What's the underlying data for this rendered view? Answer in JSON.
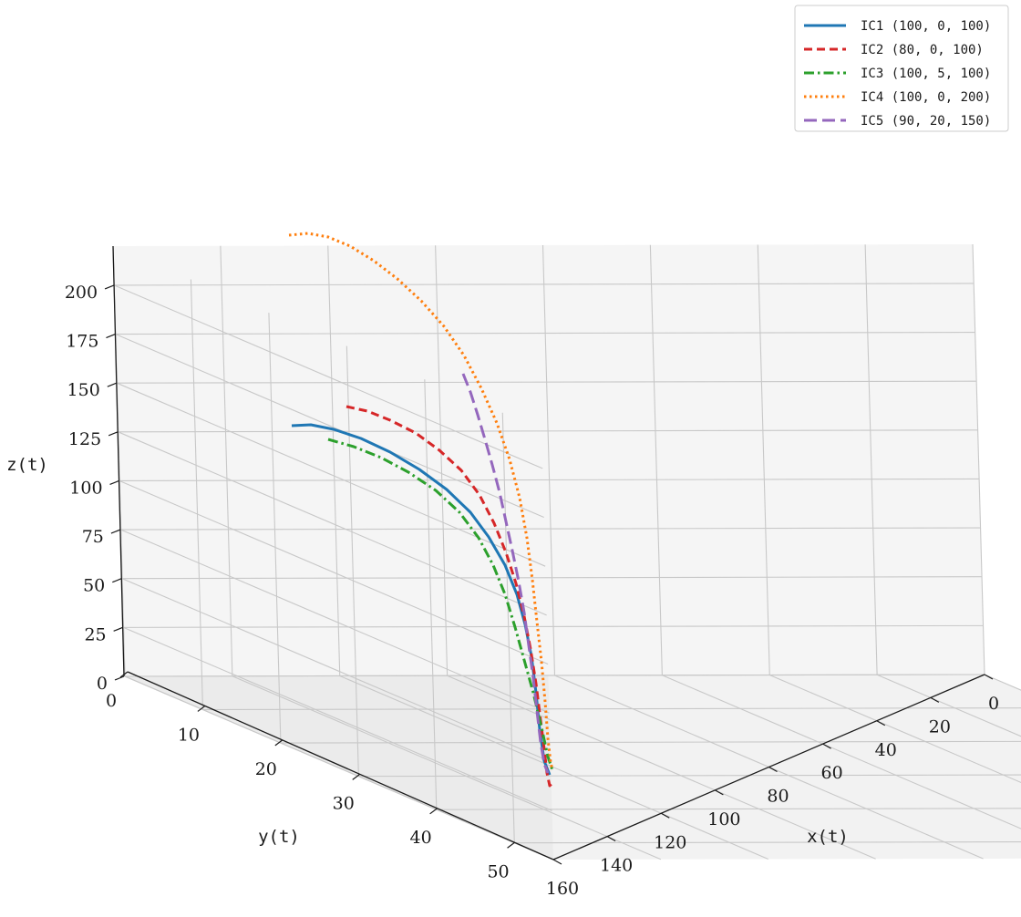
{
  "chart_data": {
    "type": "line",
    "projection": "3d",
    "title": "",
    "xlabel": "x(t)",
    "ylabel": "y(t)",
    "zlabel": "z(t)",
    "xlim": [
      0,
      160
    ],
    "ylim": [
      0,
      55
    ],
    "zlim": [
      0,
      220
    ],
    "xticks": [
      0,
      20,
      40,
      60,
      80,
      100,
      120,
      140,
      160
    ],
    "yticks": [
      0,
      10,
      20,
      30,
      40,
      50
    ],
    "zticks": [
      0,
      25,
      50,
      75,
      100,
      125,
      150,
      175,
      200
    ],
    "grid": true,
    "legend_position": "top-right",
    "series": [
      {
        "name": "IC1 (100, 0, 100)",
        "color": "#1f77b4",
        "style": "solid",
        "x": [
          100,
          108.4,
          116.5,
          124.2,
          130.9,
          136.4,
          140.6,
          143.6,
          145.8,
          147.2,
          148.2,
          148.8
        ],
        "y": [
          0,
          2.2,
          5.0,
          8.2,
          11.6,
          15.2,
          18.8,
          22.4,
          25.8,
          28.8,
          31.6,
          34.2
        ],
        "z": [
          100,
          108,
          104,
          93,
          78,
          61,
          45,
          31,
          20,
          12,
          7,
          5
        ]
      },
      {
        "name": "IC2 (80, 0, 100)",
        "color": "#d62728",
        "style": "dashed",
        "x": [
          80,
          90,
          100,
          110,
          119,
          127,
          134,
          140,
          144,
          147,
          149,
          150
        ],
        "y": [
          0,
          3,
          6.5,
          10.4,
          14.4,
          18.5,
          22.5,
          26.3,
          29.7,
          32.8,
          35.5,
          37.6
        ],
        "z": [
          100,
          112,
          112,
          104,
          90,
          72,
          54,
          37,
          22,
          10,
          3,
          0
        ]
      },
      {
        "name": "IC3 (100, 5, 100)",
        "color": "#2ca02c",
        "style": "dashdot",
        "x": [
          100,
          108,
          115.5,
          122.5,
          129,
          134.5,
          139,
          142.5,
          145.2,
          147,
          148.2
        ],
        "y": [
          5,
          7.6,
          10.6,
          13.8,
          17.2,
          20.6,
          24,
          27.2,
          30.2,
          32.8,
          35
        ],
        "z": [
          100,
          102,
          96,
          85,
          71,
          56,
          42,
          29,
          19,
          11,
          6
        ]
      },
      {
        "name": "IC4 (100, 0, 200)",
        "color": "#ff7f0e",
        "style": "dotted",
        "x": [
          100,
          108,
          116,
          124,
          131,
          137,
          141.5,
          145,
          147.2,
          148.5,
          149.2
        ],
        "y": [
          0,
          3.2,
          7,
          11,
          15.3,
          19.6,
          23.7,
          27.4,
          30.4,
          32.8,
          34.6
        ],
        "z": [
          200,
          208,
          198,
          175,
          142,
          106,
          72,
          44,
          24,
          12,
          5
        ]
      },
      {
        "name": "IC5 (90, 20, 150)",
        "color": "#9467bd",
        "style": "longdash",
        "x": [
          90,
          98,
          106,
          114,
          121,
          128,
          134,
          139,
          143,
          146,
          148
        ],
        "y": [
          20,
          21.5,
          23.2,
          25,
          26.7,
          28.4,
          30,
          31.5,
          32.8,
          33.8,
          34.6
        ],
        "z": [
          150,
          138,
          122,
          104,
          85,
          67,
          50,
          35,
          22,
          13,
          7
        ]
      }
    ]
  }
}
